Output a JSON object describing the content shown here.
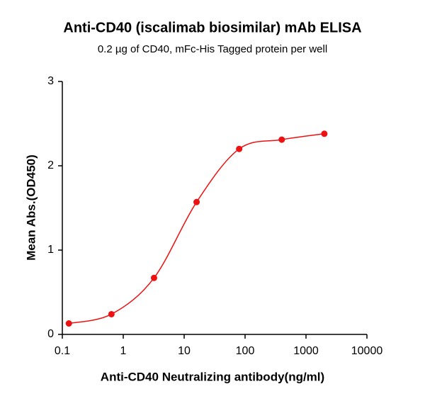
{
  "chart_data": {
    "type": "scatter",
    "title": "Anti-CD40 (iscalimab biosimilar) mAb ELISA",
    "subtitle": "0.2 µg of CD40, mFc-His Tagged protein per well",
    "x_label": "Anti-CD40 Neutralizing antibody(ng/ml)",
    "y_label": "Mean Abs.(OD450)",
    "x": [
      0.128,
      0.64,
      3.2,
      16,
      80,
      400,
      2000
    ],
    "values": [
      0.13,
      0.24,
      0.67,
      1.57,
      2.2,
      2.31,
      2.38
    ],
    "color": "#ee1111",
    "x_log": true,
    "xlim": [
      0.1,
      10000
    ],
    "xticks": [
      0.1,
      1,
      10,
      100,
      1000,
      10000
    ],
    "ylim": [
      0,
      3
    ],
    "yticks": [
      0,
      1,
      2,
      3
    ],
    "grid": false
  }
}
